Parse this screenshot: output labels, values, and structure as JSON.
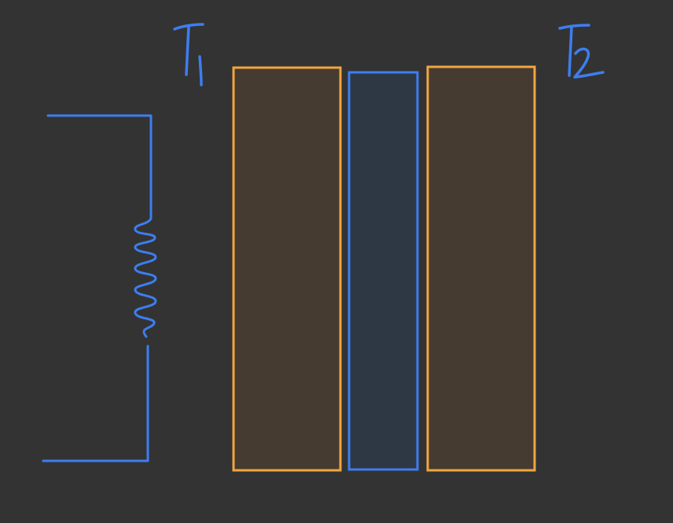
{
  "diagram": {
    "background_color": "#333333",
    "labels": {
      "left_temperature": "T1",
      "right_temperature": "T2"
    },
    "colors": {
      "wire": "#3d7ef0",
      "outer_block_stroke": "#f0a640",
      "outer_block_fill": "#463b31",
      "middle_block_stroke": "#3d7ef0",
      "middle_block_fill": "#2e3844"
    },
    "components": [
      "heater-coil-circuit",
      "left-plate",
      "middle-layer",
      "right-plate"
    ]
  }
}
